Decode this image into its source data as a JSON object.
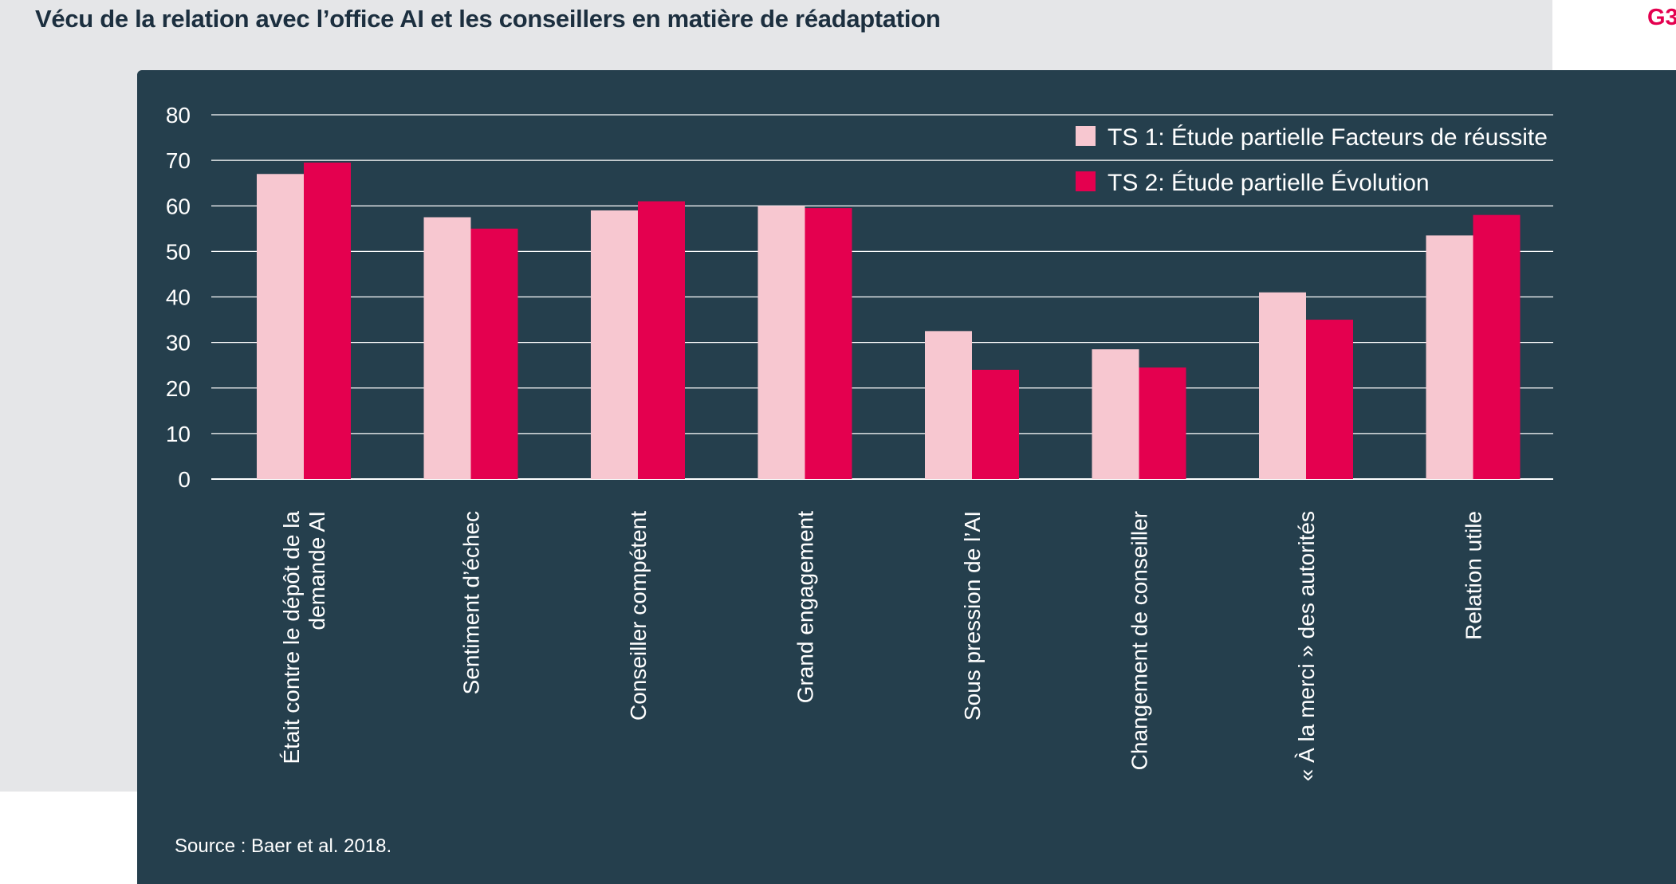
{
  "header": {
    "title": "Vécu de la relation avec l’office AI et les conseillers en matière de réadaptation",
    "figure_code": "G3"
  },
  "footer": {
    "source": "Source : Baer et al. 2018."
  },
  "colors": {
    "series_1": "#f7c7d0",
    "series_2": "#e4004f",
    "panel_background": "#253f4d",
    "page_background": "#e5e6e8",
    "title": "#1c2f3f",
    "accent": "#e4004f"
  },
  "chart_data": {
    "type": "bar",
    "ylim": [
      0,
      80
    ],
    "yticks": [
      0,
      10,
      20,
      30,
      40,
      50,
      60,
      70,
      80
    ],
    "grid": true,
    "legend_position": "top-right",
    "category_label_orientation": "vertical",
    "categories": [
      [
        "Était contre le dépôt de la",
        "demande AI"
      ],
      [
        "Sentiment d’échec"
      ],
      [
        "Conseiller compétent"
      ],
      [
        "Grand engagement"
      ],
      [
        "Sous pression de l’AI"
      ],
      [
        "Changement de conseiller"
      ],
      [
        "« À la merci » des autorités"
      ],
      [
        "Relation utile"
      ]
    ],
    "series": [
      {
        "name": "TS 1: Étude partielle Facteurs de réussite",
        "values": [
          67,
          57.5,
          59,
          60,
          32.5,
          28.5,
          41,
          53.5
        ]
      },
      {
        "name": "TS 2: Étude partielle Évolution",
        "values": [
          69.5,
          55,
          61,
          59.5,
          24,
          24.5,
          35,
          58
        ]
      }
    ]
  }
}
